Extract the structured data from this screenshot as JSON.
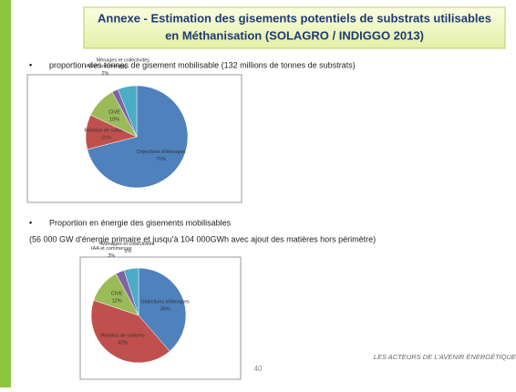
{
  "header": {
    "title_line1": "Annexe - Estimation des gisements potentiels de substrats utilisables",
    "title_line2": "en Méthanisation (SOLAGRO / INDIGGO 2013)"
  },
  "bullets": [
    "proportion des tonnes de gisement mobilisable (132 millions de tonnes de substrats)",
    "Proportion en énergie des gisements mobilisables"
  ],
  "note": "(56 000 GW d'énergie primaire et jusqu'à 104 000GWh avec ajout des matières hors périmètre)",
  "chart_data": [
    {
      "type": "pie",
      "categories": [
        "Déjections d'élevages",
        "Résidus de cultures",
        "CIVE",
        "IAA et commerces",
        "Ménages et collectivités"
      ],
      "values": [
        71,
        11,
        10,
        2,
        6
      ],
      "value_labels": [
        "71%",
        "11%",
        "10%",
        "2%",
        "6%"
      ],
      "colors": [
        "#4f81bd",
        "#c0504d",
        "#9bbb59",
        "#8064a2",
        "#4bacc6"
      ]
    },
    {
      "type": "pie",
      "categories": [
        "Déjections d'élevages",
        "Résidus de cultures",
        "CIVE",
        "IAA et commerces",
        "Ménages et collectivités"
      ],
      "values": [
        39,
        42,
        12,
        3,
        5
      ],
      "value_labels": [
        "39%",
        "42%",
        "12%",
        "3%",
        "5%"
      ],
      "colors": [
        "#4f81bd",
        "#c0504d",
        "#9bbb59",
        "#8064a2",
        "#4bacc6"
      ]
    }
  ],
  "footer": {
    "page": "40",
    "tagline": "LES ACTEURS DE L'AVENIR ÉNERGÉTIQUE"
  }
}
